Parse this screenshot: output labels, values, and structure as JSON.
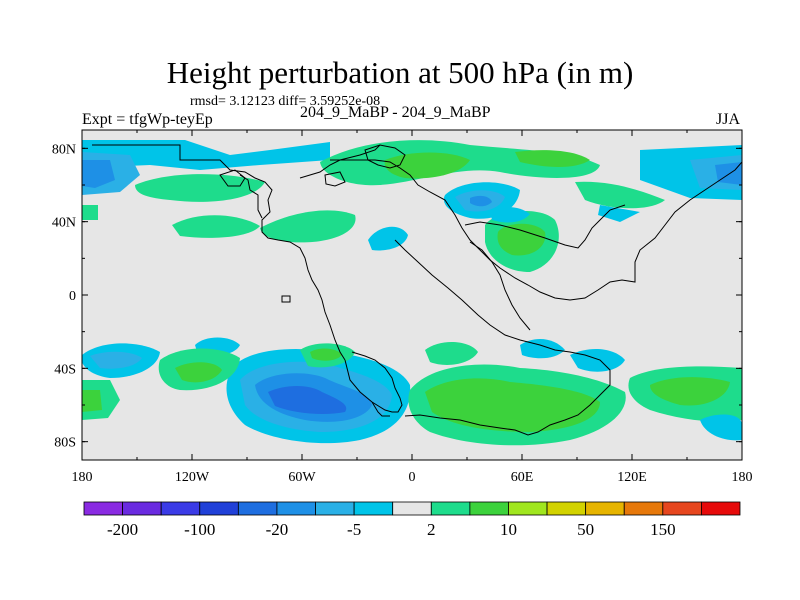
{
  "title": "Height perturbation at 500 hPa (in m)",
  "stats_text": "rmsd= 3.12123  diff= 3.59252e-08",
  "experiment_label": "Expt = tfgWp-teyEp",
  "subtitle": "204_9_MaBP - 204_9_MaBP",
  "season": "JJA",
  "map": {
    "projection": "cylindrical-equidistant",
    "lon_range": [
      -180,
      180
    ],
    "lat_range": [
      -90,
      90
    ],
    "background_color": "#e6e6e6",
    "lat_ticks": [
      "80N",
      "40N",
      "0",
      "40S",
      "80S"
    ],
    "lon_ticks": [
      "180",
      "120W",
      "60W",
      "0",
      "60E",
      "120E",
      "180"
    ]
  },
  "colorbar": {
    "colors": [
      "#8a2be2",
      "#6a2be0",
      "#3b3be6",
      "#2040d8",
      "#1e6ee0",
      "#1e90e6",
      "#2ab0e6",
      "#00c4e8",
      "#e6e6e6",
      "#1edc8c",
      "#3cd23c",
      "#a0e61e",
      "#d2d200",
      "#e6b400",
      "#e6780a",
      "#e6461e",
      "#e60a0a"
    ],
    "labels": [
      "-200",
      "-100",
      "-20",
      "-5",
      "2",
      "10",
      "50",
      "150"
    ]
  }
}
